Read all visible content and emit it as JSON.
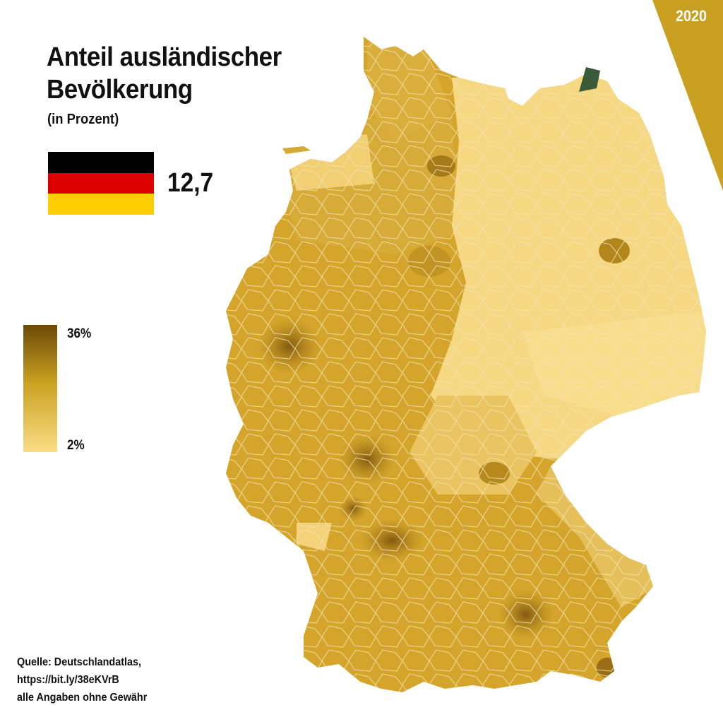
{
  "title_line1": "Anteil ausländischer",
  "title_line2": "Bevölkerung",
  "subtitle": "(in Prozent)",
  "national_value": "12,7",
  "year": "2020",
  "legend": {
    "max_label": "36%",
    "min_label": "2%",
    "max_value": 36,
    "min_value": 2,
    "color_max": "#6b4a08",
    "color_mid": "#c9a020",
    "color_min": "#f9dd86"
  },
  "flag_colors": [
    "#000000",
    "#dd0000",
    "#ffce00"
  ],
  "map_colors": {
    "west_base": "#d8ac2c",
    "east_base": "#f7d987",
    "south_base": "#cfa125",
    "dark_hotspot": "#7e5610",
    "border": "#f3e2b0",
    "accent": "#cfa21e"
  },
  "source": {
    "line1": "Quelle: Deutschlandatlas,",
    "line2": "https://bit.ly/38eKVrB",
    "line3": "alle Angaben ohne Gewähr"
  }
}
